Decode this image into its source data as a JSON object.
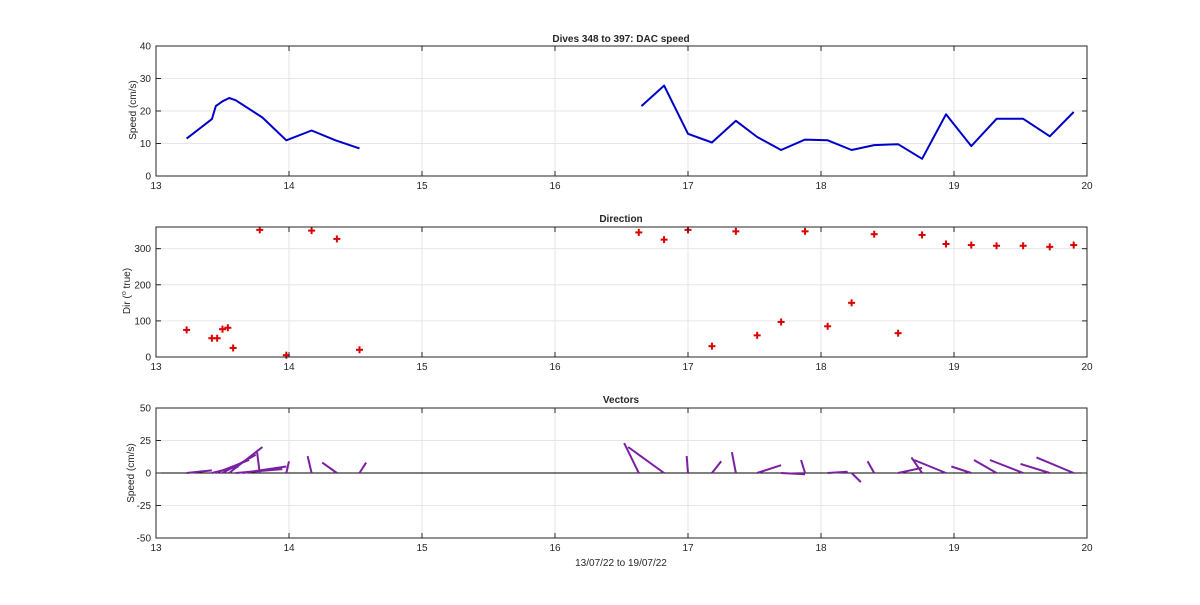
{
  "figure": {
    "xlabel": "13/07/22 to 19/07/22"
  },
  "chart_data": [
    {
      "type": "line",
      "title": "Dives 348 to 397: DAC speed",
      "ylabel": "Speed (cm/s)",
      "xlim": [
        13,
        20
      ],
      "ylim": [
        0,
        40
      ],
      "xticks": [
        13,
        14,
        15,
        16,
        17,
        18,
        19,
        20
      ],
      "yticks": [
        0,
        10,
        20,
        30,
        40
      ],
      "grid": true,
      "color": "#0000c8",
      "segments": [
        [
          [
            13.23,
            11.5
          ],
          [
            13.42,
            17.5
          ],
          [
            13.45,
            21.5
          ],
          [
            13.5,
            23
          ],
          [
            13.55,
            24
          ],
          [
            13.6,
            23.3
          ],
          [
            13.8,
            18
          ],
          [
            13.98,
            11
          ],
          [
            14.17,
            14
          ],
          [
            14.35,
            11
          ],
          [
            14.53,
            8.5
          ]
        ],
        [
          [
            16.65,
            21.5
          ],
          [
            16.82,
            27.8
          ],
          [
            17.0,
            13
          ],
          [
            17.18,
            10.3
          ],
          [
            17.36,
            17
          ],
          [
            17.52,
            12
          ],
          [
            17.7,
            8
          ],
          [
            17.88,
            11.2
          ],
          [
            18.05,
            11
          ],
          [
            18.23,
            8
          ],
          [
            18.4,
            9.5
          ],
          [
            18.58,
            9.8
          ],
          [
            18.76,
            5.3
          ],
          [
            18.94,
            19
          ],
          [
            19.13,
            9.2
          ],
          [
            19.32,
            17.6
          ],
          [
            19.52,
            17.6
          ],
          [
            19.72,
            12.2
          ],
          [
            19.9,
            19.7
          ]
        ]
      ]
    },
    {
      "type": "scatter",
      "title": "Direction",
      "ylabel": "Dir (° true)",
      "ylabel_parts": [
        "Dir (",
        "o",
        " true)"
      ],
      "xlim": [
        13,
        20
      ],
      "ylim": [
        0,
        360
      ],
      "xticks": [
        13,
        14,
        15,
        16,
        17,
        18,
        19,
        20
      ],
      "yticks": [
        0,
        100,
        200,
        300
      ],
      "grid": true,
      "color": "#dc0000",
      "marker": "+",
      "points": [
        [
          13.23,
          75
        ],
        [
          13.42,
          52
        ],
        [
          13.46,
          52
        ],
        [
          13.5,
          77
        ],
        [
          13.54,
          81
        ],
        [
          13.58,
          25
        ],
        [
          13.78,
          352
        ],
        [
          13.98,
          5
        ],
        [
          14.17,
          350
        ],
        [
          14.36,
          327
        ],
        [
          14.53,
          20
        ],
        [
          16.63,
          345
        ],
        [
          16.82,
          325
        ],
        [
          17.0,
          352
        ],
        [
          17.18,
          30
        ],
        [
          17.36,
          348
        ],
        [
          17.52,
          60
        ],
        [
          17.7,
          97
        ],
        [
          17.88,
          348
        ],
        [
          18.05,
          85
        ],
        [
          18.23,
          150
        ],
        [
          18.4,
          340
        ],
        [
          18.58,
          66
        ],
        [
          18.76,
          338
        ],
        [
          18.94,
          313
        ],
        [
          19.13,
          310
        ],
        [
          19.32,
          308
        ],
        [
          19.52,
          308
        ],
        [
          19.72,
          305
        ],
        [
          19.9,
          310
        ]
      ]
    },
    {
      "type": "line",
      "title": "Vectors",
      "ylabel": "Speed (cm/s)",
      "xlim": [
        13,
        20
      ],
      "ylim": [
        -50,
        50
      ],
      "xticks": [
        13,
        14,
        15,
        16,
        17,
        18,
        19,
        20
      ],
      "yticks": [
        -50,
        -25,
        0,
        25,
        50
      ],
      "grid": true,
      "color": "#7b1fa2",
      "vectors": [
        [
          13.23,
          0,
          13.42,
          2
        ],
        [
          13.42,
          0,
          13.62,
          5
        ],
        [
          13.45,
          0,
          13.7,
          10
        ],
        [
          13.5,
          0,
          13.75,
          14
        ],
        [
          13.55,
          0,
          13.8,
          20
        ],
        [
          13.6,
          0,
          13.95,
          3
        ],
        [
          13.65,
          0,
          13.98,
          5
        ],
        [
          13.78,
          0,
          13.76,
          16
        ],
        [
          13.98,
          0,
          14.0,
          9
        ],
        [
          14.17,
          0,
          14.14,
          13
        ],
        [
          14.36,
          0,
          14.25,
          8
        ],
        [
          14.53,
          0,
          14.58,
          8
        ],
        [
          16.63,
          0,
          16.52,
          23
        ],
        [
          16.82,
          0,
          16.55,
          20
        ],
        [
          17.0,
          0,
          16.99,
          13
        ],
        [
          17.18,
          0,
          17.25,
          9
        ],
        [
          17.36,
          0,
          17.33,
          16
        ],
        [
          17.52,
          0,
          17.7,
          6
        ],
        [
          17.7,
          0,
          17.88,
          -1
        ],
        [
          17.88,
          0,
          17.85,
          10
        ],
        [
          18.05,
          0,
          18.2,
          1
        ],
        [
          18.23,
          0,
          18.3,
          -7
        ],
        [
          18.4,
          0,
          18.35,
          9
        ],
        [
          18.58,
          0,
          18.76,
          4
        ],
        [
          18.76,
          0,
          18.68,
          12
        ],
        [
          18.94,
          0,
          18.7,
          10
        ],
        [
          19.13,
          0,
          18.98,
          5
        ],
        [
          19.32,
          0,
          19.15,
          10
        ],
        [
          19.52,
          0,
          19.27,
          10
        ],
        [
          19.72,
          0,
          19.5,
          7
        ],
        [
          19.9,
          0,
          19.62,
          12
        ]
      ]
    }
  ]
}
